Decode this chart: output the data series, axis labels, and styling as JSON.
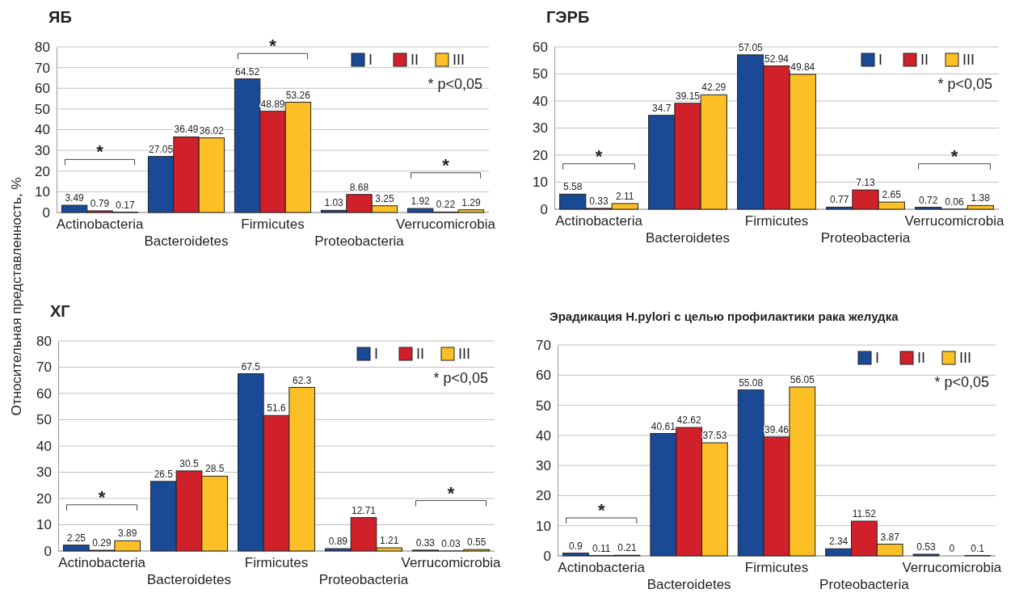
{
  "chart_data": [
    {
      "type": "bar",
      "title": "ЯБ",
      "categories": [
        "Actinobacteria",
        "Bacteroidetes",
        "Firmicutes",
        "Proteobacteria",
        "Verrucomicrobia"
      ],
      "series": [
        {
          "name": "I",
          "color": "#1a4a96",
          "values": [
            3.49,
            27.05,
            64.52,
            1.03,
            1.92
          ]
        },
        {
          "name": "II",
          "color": "#d0202a",
          "values": [
            0.79,
            36.49,
            48.89,
            8.68,
            0.22
          ]
        },
        {
          "name": "III",
          "color": "#fcbf26",
          "values": [
            0.17,
            36.02,
            53.26,
            3.25,
            1.29
          ]
        }
      ],
      "ylim": [
        0,
        80
      ],
      "yticks": [
        0,
        10,
        20,
        30,
        40,
        50,
        60,
        70,
        80
      ],
      "grid": "y",
      "legend": "top right",
      "data_labels": true,
      "annotations": [
        "* p<0,05",
        "*",
        "*",
        "*"
      ]
    },
    {
      "type": "bar",
      "title": "ГЭРБ",
      "categories": [
        "Actinobacteria",
        "Bacteroidetes",
        "Firmicutes",
        "Proteobacteria",
        "Verrucomicrobia"
      ],
      "series": [
        {
          "name": "I",
          "color": "#1a4a96",
          "values": [
            5.58,
            34.7,
            57.05,
            0.77,
            0.72
          ]
        },
        {
          "name": "II",
          "color": "#d0202a",
          "values": [
            0.33,
            39.15,
            52.94,
            7.13,
            0.06
          ]
        },
        {
          "name": "III",
          "color": "#fcbf26",
          "values": [
            2.11,
            42.29,
            49.84,
            2.65,
            1.38
          ]
        }
      ],
      "ylim": [
        0,
        60
      ],
      "yticks": [
        0,
        10,
        20,
        30,
        40,
        50,
        60
      ],
      "grid": "y",
      "legend": "top right",
      "data_labels": true,
      "annotations": [
        "* p<0,05",
        "*",
        "*"
      ]
    },
    {
      "type": "bar",
      "title": "ХГ",
      "ylabel": "Относительная представленность, %",
      "categories": [
        "Actinobacteria",
        "Bacteroidetes",
        "Firmicutes",
        "Proteobacteria",
        "Verrucomicrobia"
      ],
      "series": [
        {
          "name": "I",
          "color": "#1a4a96",
          "values": [
            2.25,
            26.5,
            67.5,
            0.89,
            0.33
          ]
        },
        {
          "name": "II",
          "color": "#d0202a",
          "values": [
            0.29,
            30.5,
            51.6,
            12.71,
            0.03
          ]
        },
        {
          "name": "III",
          "color": "#fcbf26",
          "values": [
            3.89,
            28.5,
            62.3,
            1.21,
            0.55
          ]
        }
      ],
      "ylim": [
        0,
        80
      ],
      "yticks": [
        0,
        10,
        20,
        30,
        40,
        50,
        60,
        70,
        80
      ],
      "grid": "y",
      "legend": "top right",
      "data_labels": true,
      "annotations": [
        "* p<0,05",
        "*",
        "*"
      ]
    },
    {
      "type": "bar",
      "title": "Эрадикация H.pylori  с целью профилактики рака  желудка",
      "categories": [
        "Actinobacteria",
        "Bacteroidetes",
        "Firmicutes",
        "Proteobacteria",
        "Verrucomicrobia"
      ],
      "series": [
        {
          "name": "I",
          "color": "#1a4a96",
          "values": [
            0.9,
            40.61,
            55.08,
            2.34,
            0.53
          ]
        },
        {
          "name": "II",
          "color": "#d0202a",
          "values": [
            0.11,
            42.62,
            39.46,
            11.52,
            0
          ]
        },
        {
          "name": "III",
          "color": "#fcbf26",
          "values": [
            0.21,
            37.53,
            56.05,
            3.87,
            0.1
          ]
        }
      ],
      "ylim": [
        0,
        70
      ],
      "yticks": [
        0,
        10,
        20,
        30,
        40,
        50,
        60,
        70
      ],
      "grid": "y",
      "legend": "top right",
      "data_labels": true,
      "annotations": [
        "* p<0,05",
        "*"
      ]
    }
  ]
}
